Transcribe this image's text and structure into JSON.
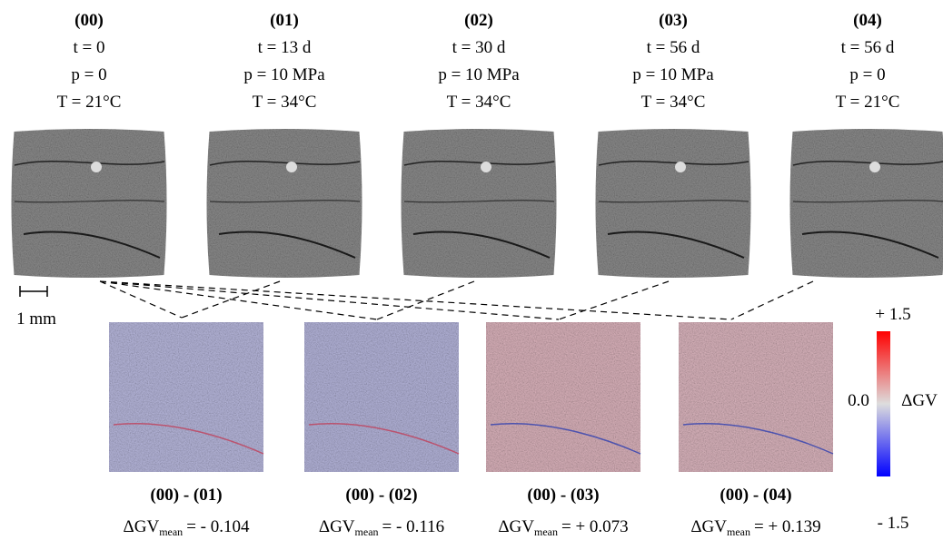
{
  "scans": [
    {
      "id": "(00)",
      "t": "t = 0",
      "p": "p = 0",
      "T": "T = 21°C"
    },
    {
      "id": "(01)",
      "t": "t = 13 d",
      "p": "p = 10 MPa",
      "T": "T = 34°C"
    },
    {
      "id": "(02)",
      "t": "t = 30 d",
      "p": "p = 10 MPa",
      "T": "T = 34°C"
    },
    {
      "id": "(03)",
      "t": "t = 56 d",
      "p": "p = 10 MPa",
      "T": "T = 34°C"
    },
    {
      "id": "(04)",
      "t": "t = 56 d",
      "p": "p = 0",
      "T": "T = 21°C"
    }
  ],
  "scale_bar": "1 mm",
  "differences": [
    {
      "label": "(00) - (01)",
      "mean_symbol": "ΔGV",
      "mean_sub": "mean",
      "mean_value": "= - 0.104"
    },
    {
      "label": "(00) - (02)",
      "mean_symbol": "ΔGV",
      "mean_sub": "mean",
      "mean_value": "= - 0.116"
    },
    {
      "label": "(00) - (03)",
      "mean_symbol": "ΔGV",
      "mean_sub": "mean",
      "mean_value": "= + 0.073"
    },
    {
      "label": "(00) - (04)",
      "mean_symbol": "ΔGV",
      "mean_sub": "mean",
      "mean_value": "= + 0.139"
    }
  ],
  "colorbar": {
    "max": "+ 1.5",
    "mid": "0.0",
    "min": "- 1.5",
    "label": "ΔGV"
  }
}
